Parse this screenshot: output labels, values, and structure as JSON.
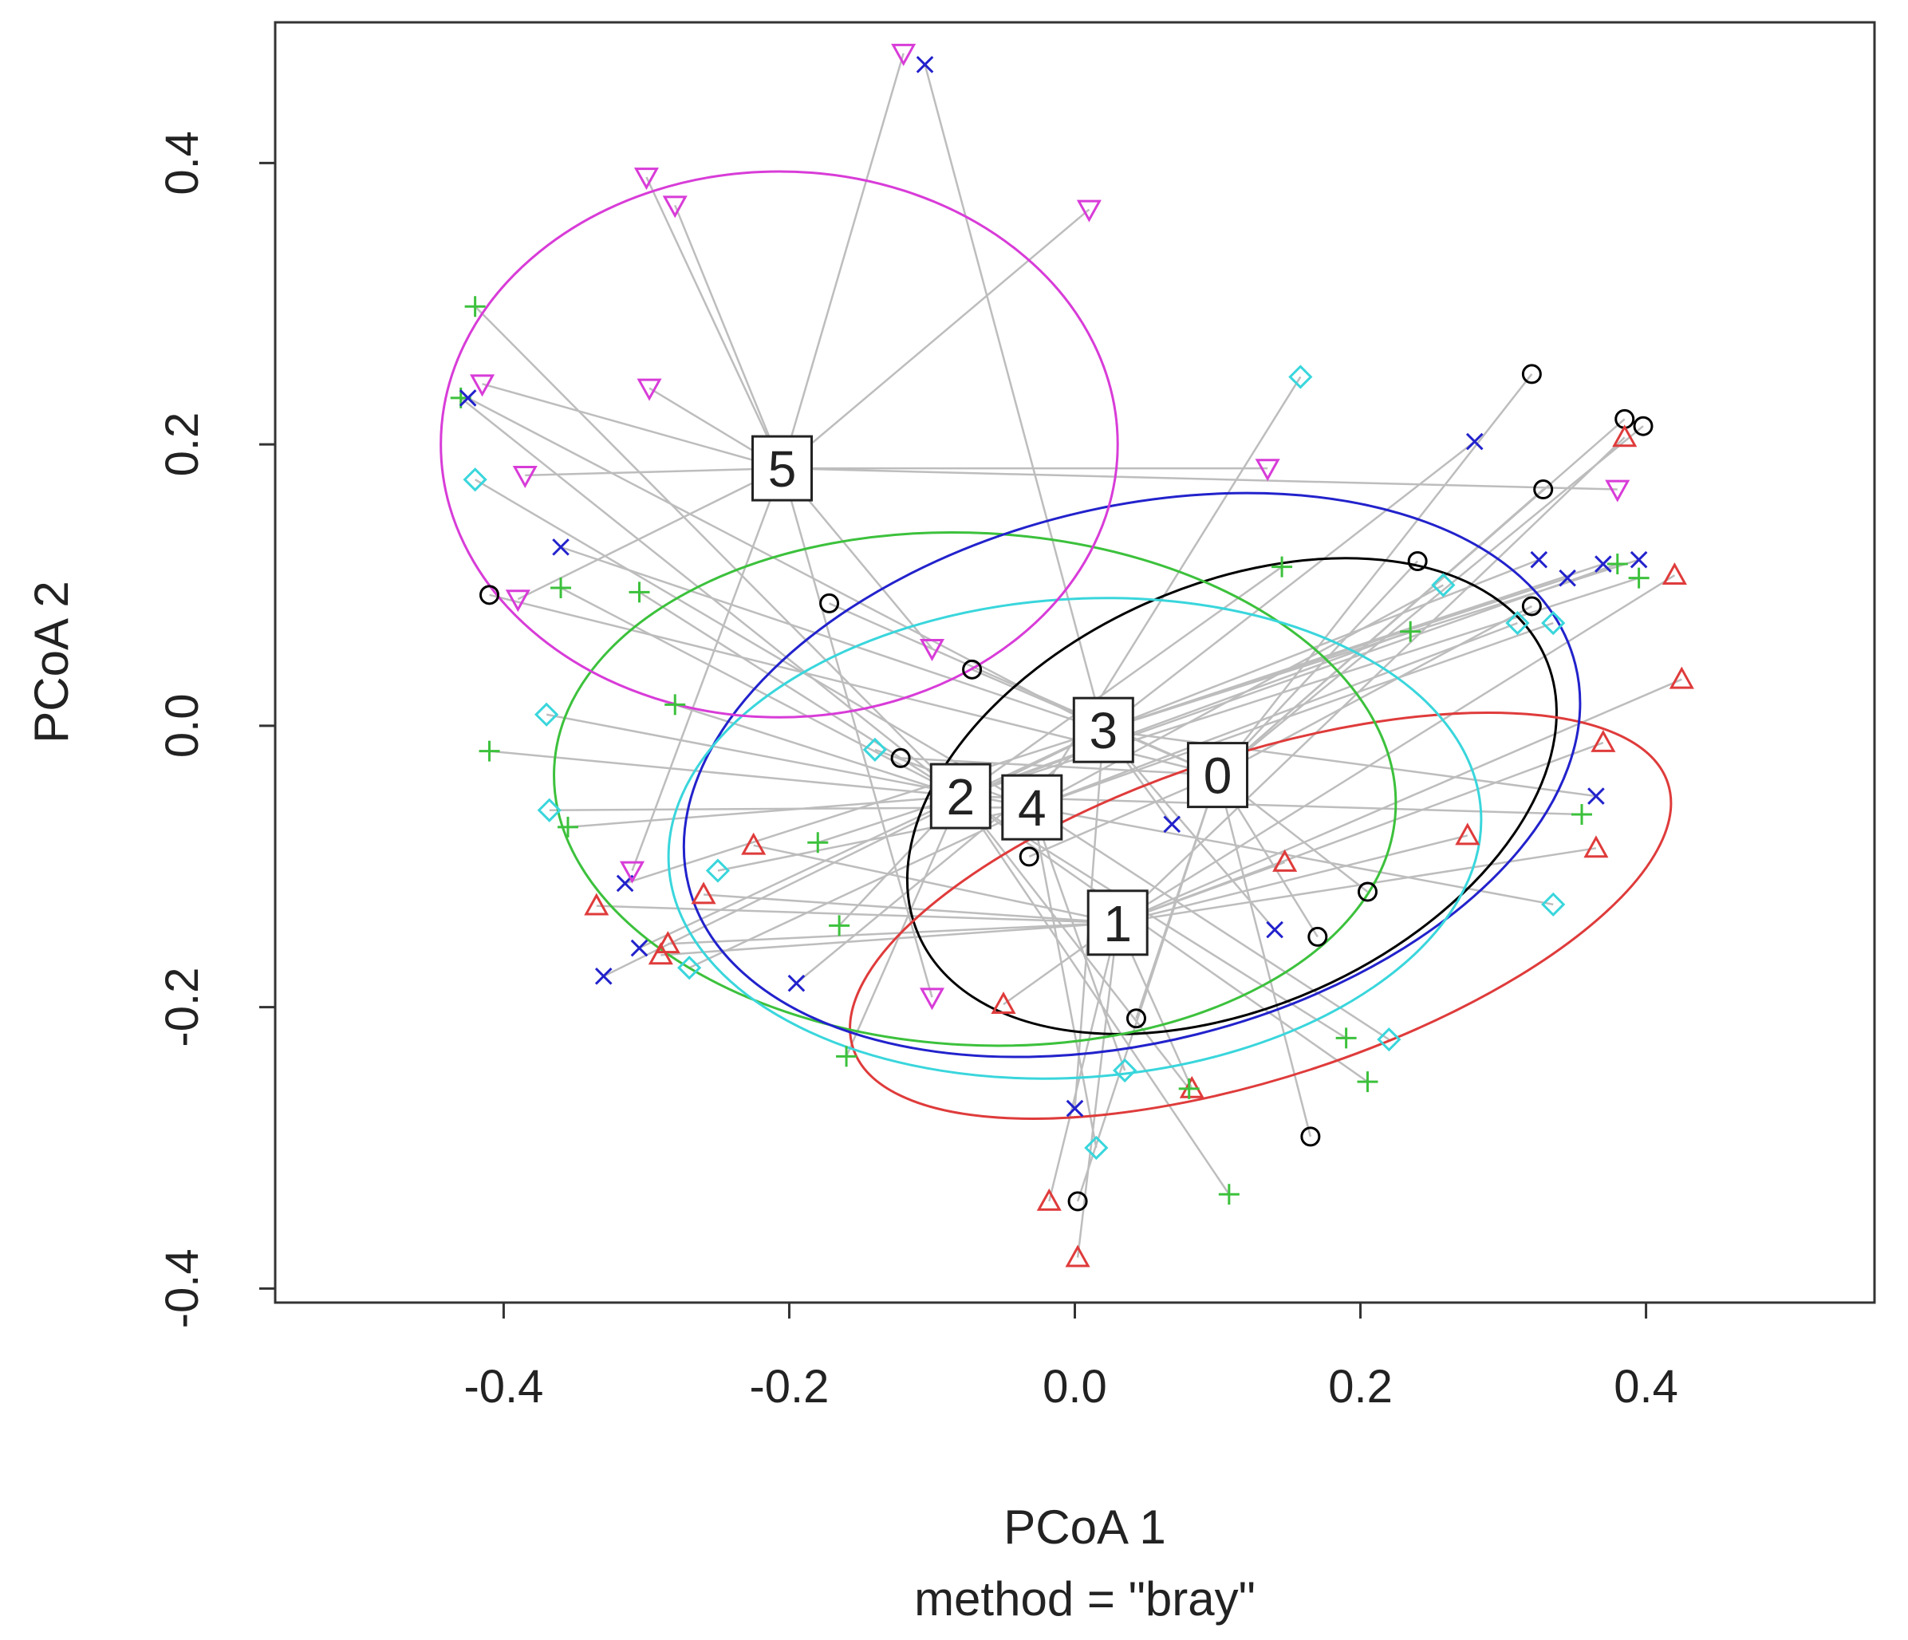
{
  "chart_data": {
    "type": "scatter",
    "subtype": "PCoA ordination with spider lines and ellipses",
    "xlabel": "PCoA 1",
    "subtitle": "method = \"bray\"",
    "ylabel": "PCoA 2",
    "xlim": [
      -0.56,
      0.56
    ],
    "ylim": [
      -0.41,
      0.5
    ],
    "xticks": [
      -0.4,
      -0.2,
      0.0,
      0.2,
      0.4
    ],
    "xtick_labels": [
      "-0.4",
      "-0.2",
      "0.0",
      "0.2",
      "0.4"
    ],
    "yticks": [
      -0.4,
      -0.2,
      0.0,
      0.2,
      0.4
    ],
    "ytick_labels": [
      "-0.4",
      "-0.2",
      "0.0",
      "0.2",
      "0.4"
    ],
    "groups": [
      {
        "name": "0",
        "color": "#000000",
        "marker": "circle",
        "centroid": [
          0.1,
          -0.035
        ],
        "ellipse": {
          "cx": 0.11,
          "cy": -0.05,
          "rx": 0.24,
          "ry": 0.15,
          "angle": 24
        },
        "points": [
          [
            0.32,
            0.25
          ],
          [
            0.385,
            0.218
          ],
          [
            0.398,
            0.213
          ],
          [
            0.328,
            0.168
          ],
          [
            0.24,
            0.117
          ],
          [
            0.32,
            0.085
          ],
          [
            -0.41,
            0.093
          ],
          [
            -0.172,
            0.087
          ],
          [
            -0.072,
            0.04
          ],
          [
            -0.122,
            -0.023
          ],
          [
            -0.032,
            -0.093
          ],
          [
            0.205,
            -0.118
          ],
          [
            0.17,
            -0.15
          ],
          [
            0.043,
            -0.208
          ],
          [
            0.165,
            -0.292
          ],
          [
            0.002,
            -0.338
          ]
        ]
      },
      {
        "name": "1",
        "color": "#df3b3b",
        "marker": "triangle",
        "centroid": [
          0.03,
          -0.14
        ],
        "ellipse": {
          "cx": 0.13,
          "cy": -0.135,
          "rx": 0.3,
          "ry": 0.115,
          "angle": 18
        },
        "points": [
          [
            0.385,
            0.205
          ],
          [
            0.42,
            0.107
          ],
          [
            0.425,
            0.033
          ],
          [
            0.37,
            -0.012
          ],
          [
            0.365,
            -0.087
          ],
          [
            0.275,
            -0.078
          ],
          [
            0.147,
            -0.097
          ],
          [
            -0.225,
            -0.085
          ],
          [
            -0.26,
            -0.12
          ],
          [
            -0.335,
            -0.128
          ],
          [
            -0.285,
            -0.155
          ],
          [
            -0.29,
            -0.163
          ],
          [
            -0.05,
            -0.198
          ],
          [
            0.082,
            -0.258
          ],
          [
            -0.018,
            -0.338
          ],
          [
            0.002,
            -0.378
          ]
        ]
      },
      {
        "name": "2",
        "color": "#3cc13c",
        "marker": "plus",
        "centroid": [
          -0.08,
          -0.05
        ],
        "ellipse": {
          "cx": -0.07,
          "cy": -0.045,
          "rx": 0.295,
          "ry": 0.182,
          "angle": -3
        },
        "points": [
          [
            -0.42,
            0.298
          ],
          [
            -0.43,
            0.233
          ],
          [
            -0.36,
            0.098
          ],
          [
            -0.305,
            0.095
          ],
          [
            -0.28,
            0.015
          ],
          [
            -0.41,
            -0.018
          ],
          [
            -0.355,
            -0.072
          ],
          [
            -0.18,
            -0.083
          ],
          [
            -0.165,
            -0.142
          ],
          [
            -0.16,
            -0.235
          ],
          [
            0.145,
            0.113
          ],
          [
            0.235,
            0.067
          ],
          [
            0.38,
            0.115
          ],
          [
            0.395,
            0.105
          ],
          [
            0.355,
            -0.063
          ],
          [
            0.19,
            -0.222
          ],
          [
            0.205,
            -0.253
          ],
          [
            0.108,
            -0.333
          ],
          [
            0.08,
            -0.258
          ]
        ]
      },
      {
        "name": "3",
        "color": "#2222cc",
        "marker": "x",
        "centroid": [
          0.02,
          -0.003
        ],
        "ellipse": {
          "cx": 0.04,
          "cy": -0.035,
          "rx": 0.32,
          "ry": 0.19,
          "angle": 14
        },
        "points": [
          [
            -0.105,
            0.47
          ],
          [
            -0.425,
            0.233
          ],
          [
            -0.36,
            0.127
          ],
          [
            0.28,
            0.202
          ],
          [
            0.325,
            0.118
          ],
          [
            0.345,
            0.105
          ],
          [
            0.37,
            0.115
          ],
          [
            0.395,
            0.118
          ],
          [
            0.365,
            -0.05
          ],
          [
            0.068,
            -0.07
          ],
          [
            0.14,
            -0.145
          ],
          [
            -0.315,
            -0.112
          ],
          [
            -0.305,
            -0.158
          ],
          [
            -0.33,
            -0.178
          ],
          [
            -0.195,
            -0.183
          ],
          [
            0.0,
            -0.272
          ]
        ]
      },
      {
        "name": "4",
        "color": "#39d6dc",
        "marker": "diamond",
        "centroid": [
          -0.03,
          -0.058
        ],
        "ellipse": {
          "cx": 0.0,
          "cy": -0.08,
          "rx": 0.285,
          "ry": 0.17,
          "angle": 4
        },
        "points": [
          [
            0.158,
            0.248
          ],
          [
            -0.42,
            0.175
          ],
          [
            0.258,
            0.1
          ],
          [
            0.31,
            0.073
          ],
          [
            0.335,
            0.073
          ],
          [
            -0.37,
            0.008
          ],
          [
            -0.14,
            -0.017
          ],
          [
            -0.368,
            -0.06
          ],
          [
            -0.25,
            -0.103
          ],
          [
            -0.27,
            -0.172
          ],
          [
            0.335,
            -0.127
          ],
          [
            0.22,
            -0.223
          ],
          [
            0.035,
            -0.245
          ],
          [
            0.015,
            -0.3
          ]
        ]
      },
      {
        "name": "5",
        "color": "#d83cd8",
        "marker": "triangle-down",
        "centroid": [
          -0.205,
          0.183
        ],
        "ellipse": {
          "cx": -0.207,
          "cy": 0.2,
          "rx": 0.237,
          "ry": 0.194,
          "angle": 0
        },
        "points": [
          [
            -0.12,
            0.478
          ],
          [
            -0.3,
            0.39
          ],
          [
            -0.28,
            0.37
          ],
          [
            0.01,
            0.367
          ],
          [
            -0.415,
            0.243
          ],
          [
            -0.298,
            0.24
          ],
          [
            -0.385,
            0.178
          ],
          [
            0.135,
            0.183
          ],
          [
            0.38,
            0.168
          ],
          [
            -0.39,
            0.09
          ],
          [
            -0.1,
            0.055
          ],
          [
            -0.31,
            -0.103
          ],
          [
            -0.1,
            -0.193
          ]
        ]
      }
    ]
  }
}
